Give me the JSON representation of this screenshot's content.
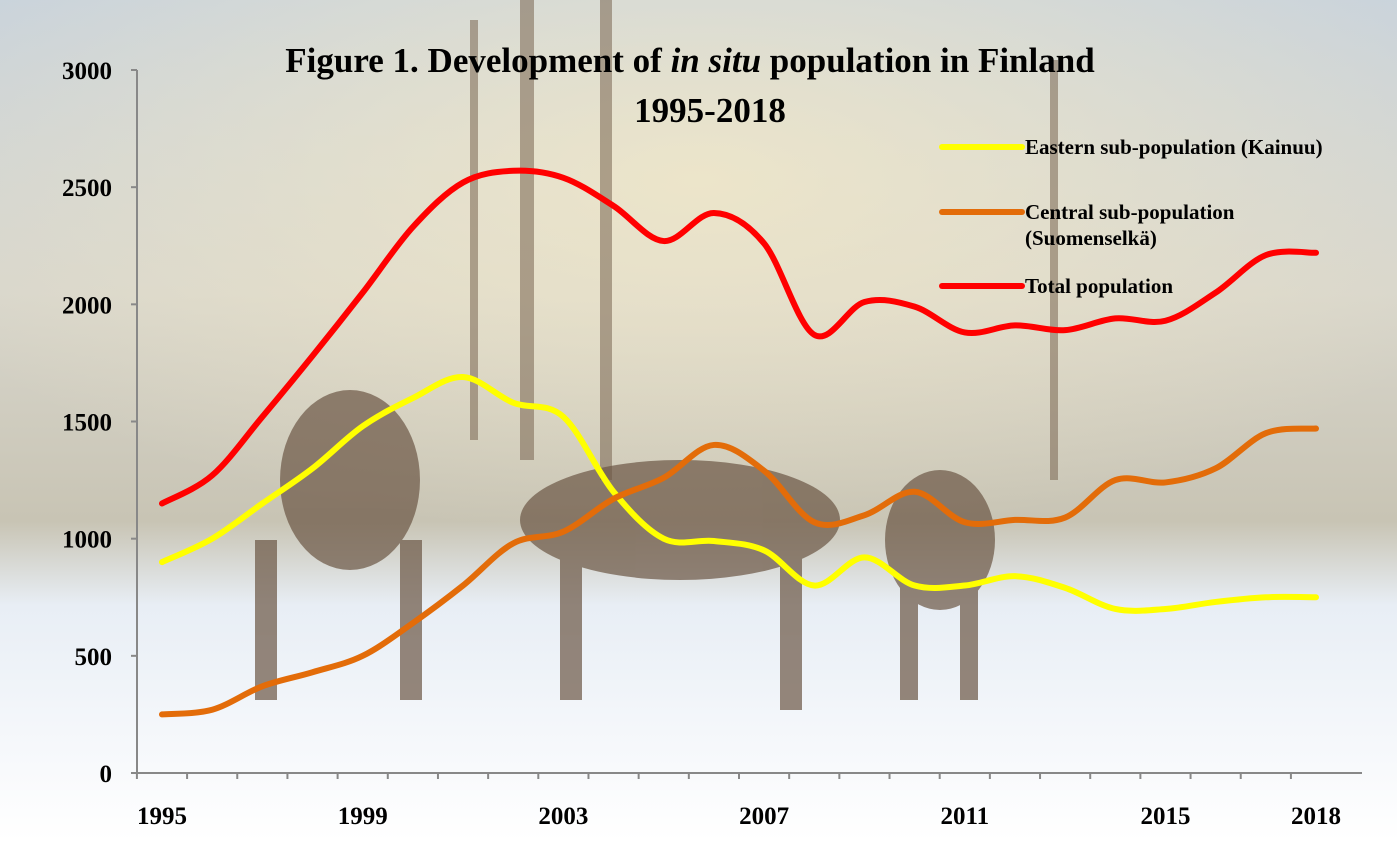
{
  "chart_data": {
    "type": "line",
    "title": [
      "Figure 1. Development of",
      "in situ",
      "population in Finland",
      "1995-2018"
    ],
    "categories": [
      "1995",
      null,
      null,
      null,
      "1999",
      null,
      null,
      null,
      "2003",
      null,
      null,
      null,
      "2007",
      null,
      null,
      null,
      "2011",
      null,
      null,
      null,
      "2015",
      null,
      null,
      "2018"
    ],
    "series": [
      {
        "name": "Eastern sub-population (Kainuu)",
        "color": "#ffff00",
        "values": [
          900,
          1000,
          1150,
          1300,
          1480,
          1600,
          1690,
          1580,
          1520,
          1200,
          1000,
          990,
          950,
          800,
          920,
          800,
          800,
          840,
          790,
          700,
          700,
          730,
          750,
          750
        ]
      },
      {
        "name": "Central sub-population (Suomenselkä)",
        "color": "#e36c09",
        "values": [
          250,
          270,
          370,
          430,
          500,
          640,
          800,
          980,
          1030,
          1170,
          1260,
          1400,
          1290,
          1070,
          1100,
          1200,
          1070,
          1080,
          1090,
          1250,
          1240,
          1300,
          1450,
          1470
        ]
      },
      {
        "name": "Total population",
        "color": "#ff0000",
        "values": [
          1150,
          1270,
          1520,
          1780,
          2050,
          2330,
          2520,
          2570,
          2540,
          2420,
          2270,
          2390,
          2260,
          1870,
          2010,
          1990,
          1880,
          1910,
          1890,
          1940,
          1930,
          2050,
          2210,
          2220
        ]
      }
    ],
    "ylim": [
      0,
      3000
    ],
    "yticks": [
      0,
      500,
      1000,
      1500,
      2000,
      2500,
      3000
    ],
    "grid": false,
    "legend": "top-right",
    "smooth": true
  }
}
